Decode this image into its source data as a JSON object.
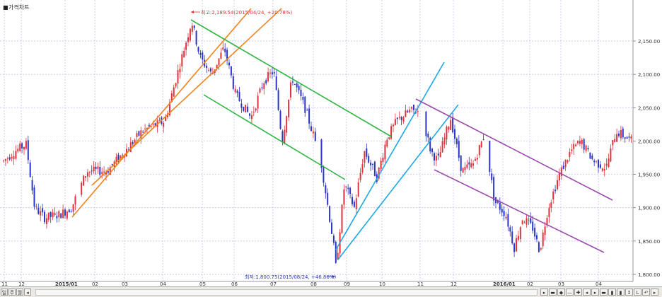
{
  "panel": {
    "title_prefix": "■",
    "title": "가격차트"
  },
  "chart_data": {
    "type": "candlestick",
    "ylim": [
      1800,
      2200
    ],
    "y_ticks": [
      "2,150.00",
      "2,100.00",
      "2,050.00",
      "2,000.00",
      "1,950.00",
      "1,900.00",
      "1,850.00",
      "1,800.00"
    ],
    "y_tick_values": [
      2150,
      2100,
      2050,
      2000,
      1950,
      1900,
      1850,
      1800
    ],
    "x_labels": [
      "11",
      "12",
      "2015/01",
      "02",
      "03",
      "04",
      "05",
      "06",
      "07",
      "08",
      "09",
      "10",
      "11",
      "12",
      "2016/01",
      "02",
      "03",
      "04"
    ],
    "max_annotation": "최고:2,189.54(2015/04/24, +20.78%)",
    "min_annotation": "최저:1,800.75(2015/08/24, +46.86%)",
    "trend_channels": [
      {
        "name": "orange",
        "color": "#f0831e"
      },
      {
        "name": "green",
        "color": "#31b345"
      },
      {
        "name": "blue",
        "color": "#1fa7e8"
      },
      {
        "name": "purple",
        "color": "#9b4cab"
      }
    ],
    "up_color": "#e0323c",
    "down_color": "#2b35c8",
    "grid": true
  },
  "bottom_bar": {
    "left_buttons": [
      "일",
      "주",
      "월",
      "◂"
    ],
    "right_buttons": [
      "▸",
      "▬",
      "◆",
      "—",
      "✚",
      "◂",
      "▸",
      "▬",
      "▮",
      "▮",
      "↕",
      "L",
      "↶",
      "▸"
    ]
  }
}
